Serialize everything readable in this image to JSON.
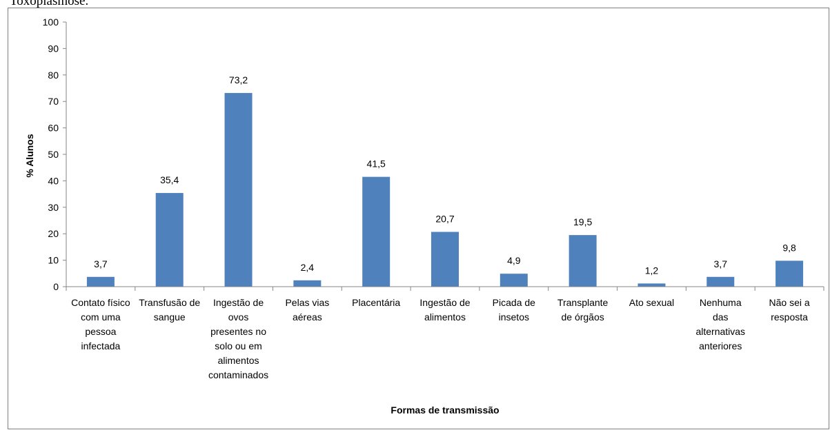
{
  "caption": "Toxoplasmose.",
  "chart_data": {
    "type": "bar",
    "xlabel": "Formas de transmissão",
    "ylabel": "% Alunos",
    "ylim": [
      0,
      100
    ],
    "yticks": [
      0,
      10,
      20,
      30,
      40,
      50,
      60,
      70,
      80,
      90,
      100
    ],
    "grid": false,
    "bar_color": "#4f81bd",
    "categories": [
      [
        "Contato físico",
        "com uma",
        "pessoa",
        "infectada"
      ],
      [
        "Transfusão de",
        "sangue"
      ],
      [
        "Ingestão de",
        "ovos",
        "presentes no",
        "solo ou em",
        "alimentos",
        "contaminados"
      ],
      [
        "Pelas vias",
        "aéreas"
      ],
      [
        "Placentária"
      ],
      [
        "Ingestão de",
        "alimentos"
      ],
      [
        "Picada de",
        "insetos"
      ],
      [
        "Transplante",
        "de órgãos"
      ],
      [
        "Ato sexual"
      ],
      [
        "Nenhuma",
        "das",
        "alternativas",
        "anteriores"
      ],
      [
        "Não sei a",
        "resposta"
      ]
    ],
    "values": [
      3.7,
      35.4,
      73.2,
      2.4,
      41.5,
      20.7,
      4.9,
      19.5,
      1.2,
      3.7,
      9.8
    ],
    "value_labels": [
      "3,7",
      "35,4",
      "73,2",
      "2,4",
      "41,5",
      "20,7",
      "4,9",
      "19,5",
      "1,2",
      "3,7",
      "9,8"
    ]
  }
}
